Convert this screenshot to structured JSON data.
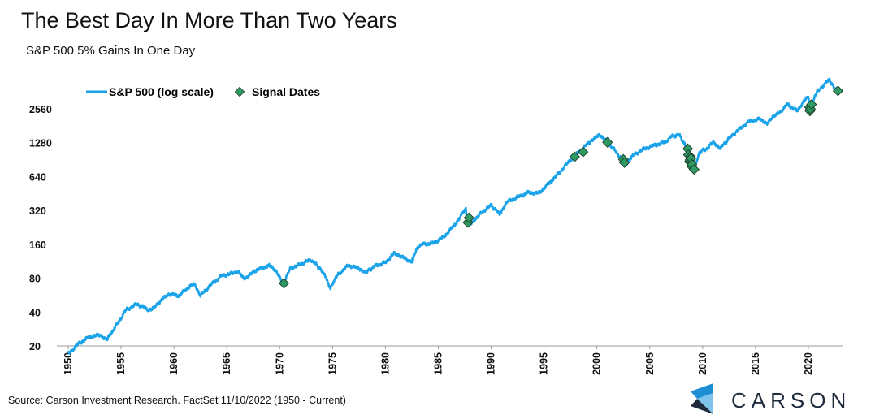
{
  "title": "The Best Day In More Than Two Years",
  "subtitle": "S&P 500 5% Gains In One Day",
  "source": "Source: Carson Investment Research. FactSet 11/10/2022 (1950 - Current)",
  "brand": {
    "name": "CARSON",
    "colors": [
      "#1e8fd4",
      "#7fc4ec",
      "#1e2b3c"
    ]
  },
  "colors": {
    "line": "#1aa3e8",
    "marker": "#2e9a62",
    "marker_edge": "#1c3a28"
  },
  "chart_data": {
    "type": "line",
    "title": "The Best Day In More Than Two Years",
    "subtitle": "S&P 500 5% Gains In One Day",
    "y_scale": "log2",
    "ylim": [
      20,
      4200
    ],
    "xlim": [
      1950,
      2023
    ],
    "yticks": [
      20,
      40,
      80,
      160,
      320,
      640,
      1280,
      2560
    ],
    "ytick_labels": [
      "20",
      "40",
      "80",
      "160",
      "320",
      "640",
      "1280",
      "2560"
    ],
    "xticks": [
      1950,
      1955,
      1960,
      1965,
      1970,
      1975,
      1980,
      1985,
      1990,
      1995,
      2000,
      2005,
      2010,
      2015,
      2020
    ],
    "xtick_labels": [
      "1950",
      "1955",
      "1960",
      "1965",
      "1970",
      "1975",
      "1980",
      "1985",
      "1990",
      "1995",
      "2000",
      "2005",
      "2010",
      "2015",
      "2020"
    ],
    "grid": false,
    "legend_position": "top-left",
    "series": [
      {
        "name": "S&P 500 (log scale)",
        "type": "line",
        "x": [
          1950.0,
          1951.0,
          1952.0,
          1953.0,
          1953.7,
          1954.5,
          1955.5,
          1956.5,
          1957.0,
          1957.8,
          1958.5,
          1959.5,
          1960.5,
          1961.5,
          1962.0,
          1962.5,
          1963.5,
          1964.5,
          1965.5,
          1966.0,
          1966.8,
          1967.5,
          1968.5,
          1969.0,
          1969.7,
          1970.4,
          1971.0,
          1971.5,
          1972.5,
          1973.0,
          1973.8,
          1974.4,
          1974.8,
          1975.5,
          1976.5,
          1977.5,
          1978.2,
          1979.0,
          1980.0,
          1980.9,
          1981.5,
          1982.5,
          1983.0,
          1983.5,
          1984.5,
          1985.5,
          1986.5,
          1987.6,
          1987.8,
          1988.5,
          1989.5,
          1990.0,
          1990.8,
          1991.5,
          1992.5,
          1993.5,
          1994.5,
          1995.5,
          1996.5,
          1997.5,
          1998.5,
          1999.5,
          2000.2,
          2000.7,
          2001.5,
          2002.0,
          2002.8,
          2003.5,
          2004.5,
          2005.5,
          2006.5,
          2007.0,
          2007.8,
          2008.3,
          2008.7,
          2009.2,
          2009.7,
          2010.5,
          2011.0,
          2011.7,
          2012.5,
          2013.5,
          2014.5,
          2015.5,
          2016.1,
          2016.8,
          2017.5,
          2018.0,
          2018.95,
          2019.5,
          2020.0,
          2020.2,
          2020.6,
          2021.0,
          2021.6,
          2022.0,
          2022.5,
          2022.8
        ],
        "values": [
          17,
          21,
          24,
          25,
          23,
          30,
          42,
          47,
          45,
          41,
          48,
          58,
          56,
          68,
          70,
          56,
          70,
          84,
          88,
          92,
          78,
          92,
          100,
          103,
          92,
          72,
          98,
          102,
          112,
          116,
          98,
          80,
          65,
          86,
          104,
          98,
          90,
          103,
          110,
          135,
          124,
          112,
          150,
          160,
          164,
          185,
          235,
          330,
          230,
          270,
          330,
          355,
          300,
          380,
          420,
          460,
          455,
          560,
          700,
          900,
          1100,
          1350,
          1480,
          1400,
          1150,
          1000,
          830,
          1000,
          1130,
          1220,
          1300,
          1450,
          1500,
          1250,
          950,
          740,
          1050,
          1150,
          1300,
          1150,
          1400,
          1700,
          2000,
          2070,
          1900,
          2200,
          2500,
          2800,
          2450,
          2950,
          3250,
          2450,
          3300,
          3800,
          4300,
          4700,
          3800,
          3700
        ]
      },
      {
        "name": "Signal Dates",
        "type": "scatter",
        "x": [
          1970.4,
          1987.8,
          1987.9,
          1997.9,
          1998.7,
          2001.0,
          2002.5,
          2002.6,
          2008.6,
          2008.65,
          2008.75,
          2008.8,
          2008.85,
          2008.9,
          2008.95,
          2009.0,
          2009.2,
          2020.1,
          2020.15,
          2020.2,
          2020.3,
          2022.8
        ],
        "values": [
          72,
          250,
          275,
          960,
          1060,
          1290,
          910,
          850,
          1130,
          1000,
          870,
          900,
          960,
          930,
          790,
          820,
          740,
          2650,
          2450,
          2550,
          2800,
          3700
        ]
      }
    ]
  }
}
